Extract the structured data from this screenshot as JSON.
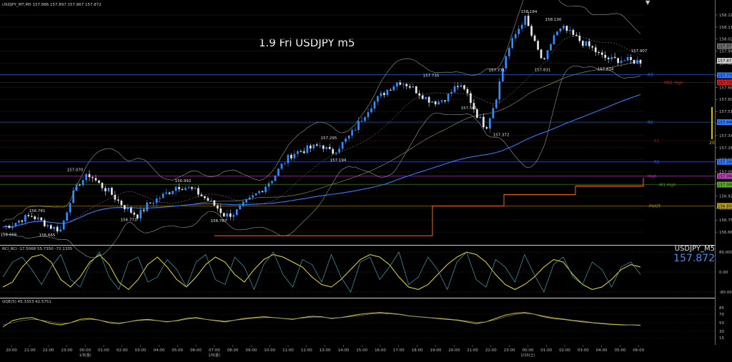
{
  "window": {
    "header_text": "USDJPY_MT,M5  157.886 157.897 157.867 157.872",
    "chart_title": "1.9 Fri USDJPY m5"
  },
  "colors": {
    "background": "#000000",
    "candle_up": "#2f8fff",
    "candle_down": "#e8e8e8",
    "ma_blue": "#2f7bff",
    "bollinger": "#9a9a9a",
    "ma_olive": "#8a8a4a",
    "pivot_line": "#ff7a1a",
    "rci_yellow": "#e8e020",
    "rci_teal": "#3aa3b0",
    "rci_red": "#c03030",
    "qqe_yellow": "#d8d020"
  },
  "chart_data": [
    {
      "type": "candlestick",
      "title": "1.9 Fri USDJPY m5",
      "ylim": [
        156.58,
        158.24
      ],
      "y_ticks": [
        "158.195",
        "158.110",
        "158.025",
        "157.940",
        "157.855",
        "157.770",
        "157.685",
        "157.600",
        "157.515",
        "157.430",
        "157.345",
        "157.260",
        "157.175",
        "157.090",
        "157.005",
        "156.920",
        "156.835",
        "156.750",
        "156.665"
      ],
      "price_badges": [
        {
          "label": "157.872",
          "value": 157.872,
          "color": "#cfcfcf"
        },
        {
          "label": "157.770",
          "value": 157.77,
          "color": "#2f7bff"
        },
        {
          "label": "157.720",
          "value": 157.72,
          "color": "#d02020"
        },
        {
          "label": "157.440",
          "value": 157.44,
          "color": "#2f7bff"
        },
        {
          "label": "157.160",
          "value": 157.16,
          "color": "#2f7bff"
        },
        {
          "label": "157.060",
          "value": 157.06,
          "color": "#c040c0"
        },
        {
          "label": "157.000",
          "value": 157.0,
          "color": "#5ab020"
        },
        {
          "label": "156.850",
          "value": 156.85,
          "color": "#c0a010"
        },
        {
          "label": "157.975",
          "value": 157.975,
          "color": "#707070"
        }
      ],
      "levels": [
        {
          "name": "R3",
          "value": 157.775,
          "color": "#2f7bff"
        },
        {
          "name": "MN1 High",
          "value": 157.72,
          "color": "#d02020"
        },
        {
          "name": "R2",
          "value": 157.44,
          "color": "#2f7bff"
        },
        {
          "name": "R1",
          "value": 157.31,
          "color": "#8a2020"
        },
        {
          "name": "R1",
          "value": 157.16,
          "color": "#2f7bff"
        },
        {
          "name": "High",
          "value": 157.06,
          "color": "#c040c0"
        },
        {
          "name": "W1 High",
          "value": 157.0,
          "color": "#5ab020"
        },
        {
          "name": "PIVOT",
          "value": 156.85,
          "color": "#c0a010"
        }
      ],
      "annotations": [
        {
          "label": "156.668",
          "value": 156.668
        },
        {
          "label": "156.781",
          "value": 156.781
        },
        {
          "label": "156.665",
          "value": 156.665
        },
        {
          "label": "157.070",
          "value": 157.07
        },
        {
          "label": "156.773",
          "value": 156.773
        },
        {
          "label": "156.992",
          "value": 156.992
        },
        {
          "label": "156.767",
          "value": 156.767
        },
        {
          "label": "157.295",
          "value": 157.295
        },
        {
          "label": "157.194",
          "value": 157.194
        },
        {
          "label": "157.735",
          "value": 157.735
        },
        {
          "label": "157.561",
          "value": 157.561
        },
        {
          "label": "157.372",
          "value": 157.372
        },
        {
          "label": "157.771",
          "value": 157.771
        },
        {
          "label": "158.184",
          "value": 158.184
        },
        {
          "label": "158.130",
          "value": 158.13
        },
        {
          "label": "157.831",
          "value": 157.831
        },
        {
          "label": "157.834",
          "value": 157.834
        },
        {
          "label": "157.907",
          "value": 157.907
        }
      ],
      "close_path": [
        156.7,
        156.72,
        156.76,
        156.78,
        156.74,
        156.7,
        156.68,
        156.9,
        157.02,
        157.07,
        157.0,
        156.95,
        156.88,
        156.82,
        156.78,
        156.86,
        156.9,
        156.94,
        156.99,
        156.98,
        156.95,
        156.9,
        156.85,
        156.78,
        156.8,
        156.86,
        156.92,
        156.98,
        157.05,
        157.15,
        157.22,
        157.24,
        157.26,
        157.28,
        157.22,
        157.28,
        157.35,
        157.45,
        157.55,
        157.62,
        157.68,
        157.73,
        157.7,
        157.65,
        157.6,
        157.58,
        157.62,
        157.7,
        157.65,
        157.5,
        157.4,
        157.6,
        157.9,
        158.05,
        158.18,
        158.0,
        157.85,
        158.05,
        158.1,
        158.05,
        158.0,
        157.96,
        157.9,
        157.88,
        157.88,
        157.87,
        157.87
      ]
    },
    {
      "type": "line",
      "title": "",
      "header_text": "RCI_RCI  -17.5068  55.7350  -72.1335",
      "ylim": [
        -100,
        100
      ],
      "y_ticks": [
        "80.0000",
        "0.00",
        "-80.0000"
      ],
      "readout_symbol": "USDJPY_M5",
      "readout_price": "157.872",
      "series": [
        {
          "color": "#e8e020",
          "values": [
            -60,
            -40,
            20,
            60,
            70,
            40,
            -30,
            -60,
            -20,
            40,
            70,
            30,
            -40,
            -70,
            -30,
            30,
            60,
            20,
            -30,
            -60,
            -20,
            30,
            60,
            40,
            -10,
            -40,
            10,
            50,
            70,
            60,
            40,
            20,
            -20,
            -50,
            -60,
            -30,
            10,
            50,
            70,
            60,
            30,
            -20,
            -60,
            -70,
            -50,
            -10,
            30,
            60,
            80,
            70,
            40,
            -10,
            -50,
            -70,
            -50,
            -20,
            20,
            50,
            40,
            -10,
            -50,
            -70,
            -60,
            -30,
            10,
            30,
            20
          ]
        },
        {
          "color": "#3aa3b0",
          "values": [
            -20,
            40,
            60,
            10,
            -50,
            20,
            70,
            -30,
            -60,
            30,
            80,
            -20,
            -70,
            40,
            60,
            -40,
            -20,
            50,
            10,
            -60,
            40,
            70,
            -30,
            -50,
            60,
            20,
            -70,
            30,
            80,
            -10,
            -60,
            50,
            30,
            -40,
            70,
            -20,
            -80,
            40,
            60,
            -30,
            20,
            80,
            -50,
            -20,
            60,
            10,
            -70,
            40,
            80,
            -30,
            -60,
            50,
            20,
            -40,
            70,
            -10,
            -80,
            30,
            60,
            -20,
            -50,
            40,
            10,
            -60,
            20,
            40,
            -10
          ]
        }
      ]
    },
    {
      "type": "line",
      "title": "",
      "header_text": "QQE(5)  45.3353  42.5751",
      "ylim": [
        0,
        100
      ],
      "y_ticks": [
        "85",
        "70",
        "50",
        "30",
        "15"
      ],
      "series": [
        {
          "color": "#d8d020",
          "values": [
            40,
            55,
            60,
            62,
            55,
            48,
            45,
            50,
            58,
            60,
            56,
            50,
            48,
            52,
            56,
            58,
            55,
            52,
            55,
            60,
            62,
            58,
            55,
            52,
            56,
            60,
            62,
            64,
            62,
            60,
            58,
            62,
            65,
            64,
            60,
            62,
            66,
            70,
            72,
            74,
            72,
            70,
            66,
            64,
            62,
            60,
            58,
            56,
            52,
            48,
            52,
            60,
            68,
            72,
            74,
            70,
            64,
            60,
            58,
            55,
            52,
            50,
            48,
            46,
            45,
            45,
            44
          ]
        },
        {
          "color": "#8a8a6a",
          "values": [
            45,
            50,
            55,
            58,
            56,
            52,
            48,
            50,
            55,
            58,
            56,
            52,
            50,
            52,
            55,
            56,
            55,
            53,
            54,
            58,
            60,
            58,
            56,
            54,
            56,
            58,
            60,
            62,
            62,
            60,
            59,
            61,
            63,
            63,
            61,
            62,
            64,
            67,
            70,
            72,
            71,
            69,
            66,
            64,
            62,
            61,
            59,
            57,
            54,
            51,
            52,
            57,
            64,
            69,
            72,
            70,
            66,
            62,
            59,
            56,
            54,
            51,
            49,
            47,
            46,
            45,
            45
          ]
        }
      ]
    }
  ],
  "time_axis": {
    "labels": [
      "20:00",
      "21:00",
      "22:00",
      "23:00",
      "00:00",
      "01:00",
      "02:00",
      "03:00",
      "04:00",
      "05:00",
      "06:00",
      "07:00",
      "08:00",
      "09:00",
      "10:00",
      "11:00",
      "12:00",
      "13:00",
      "14:00",
      "15:00",
      "16:00",
      "17:00",
      "18:00",
      "19:00",
      "20:00",
      "21:00",
      "22:00",
      "23:00",
      "00:00",
      "01:00",
      "02:00",
      "03:00",
      "04:00",
      "05:00",
      "06:00"
    ],
    "date_labels": [
      {
        "label": "1/9(金)",
        "at": 4
      },
      {
        "label": "1/9(金)",
        "at": 11
      },
      {
        "label": "1/10(土)",
        "at": 28
      }
    ]
  },
  "side_label": "20"
}
